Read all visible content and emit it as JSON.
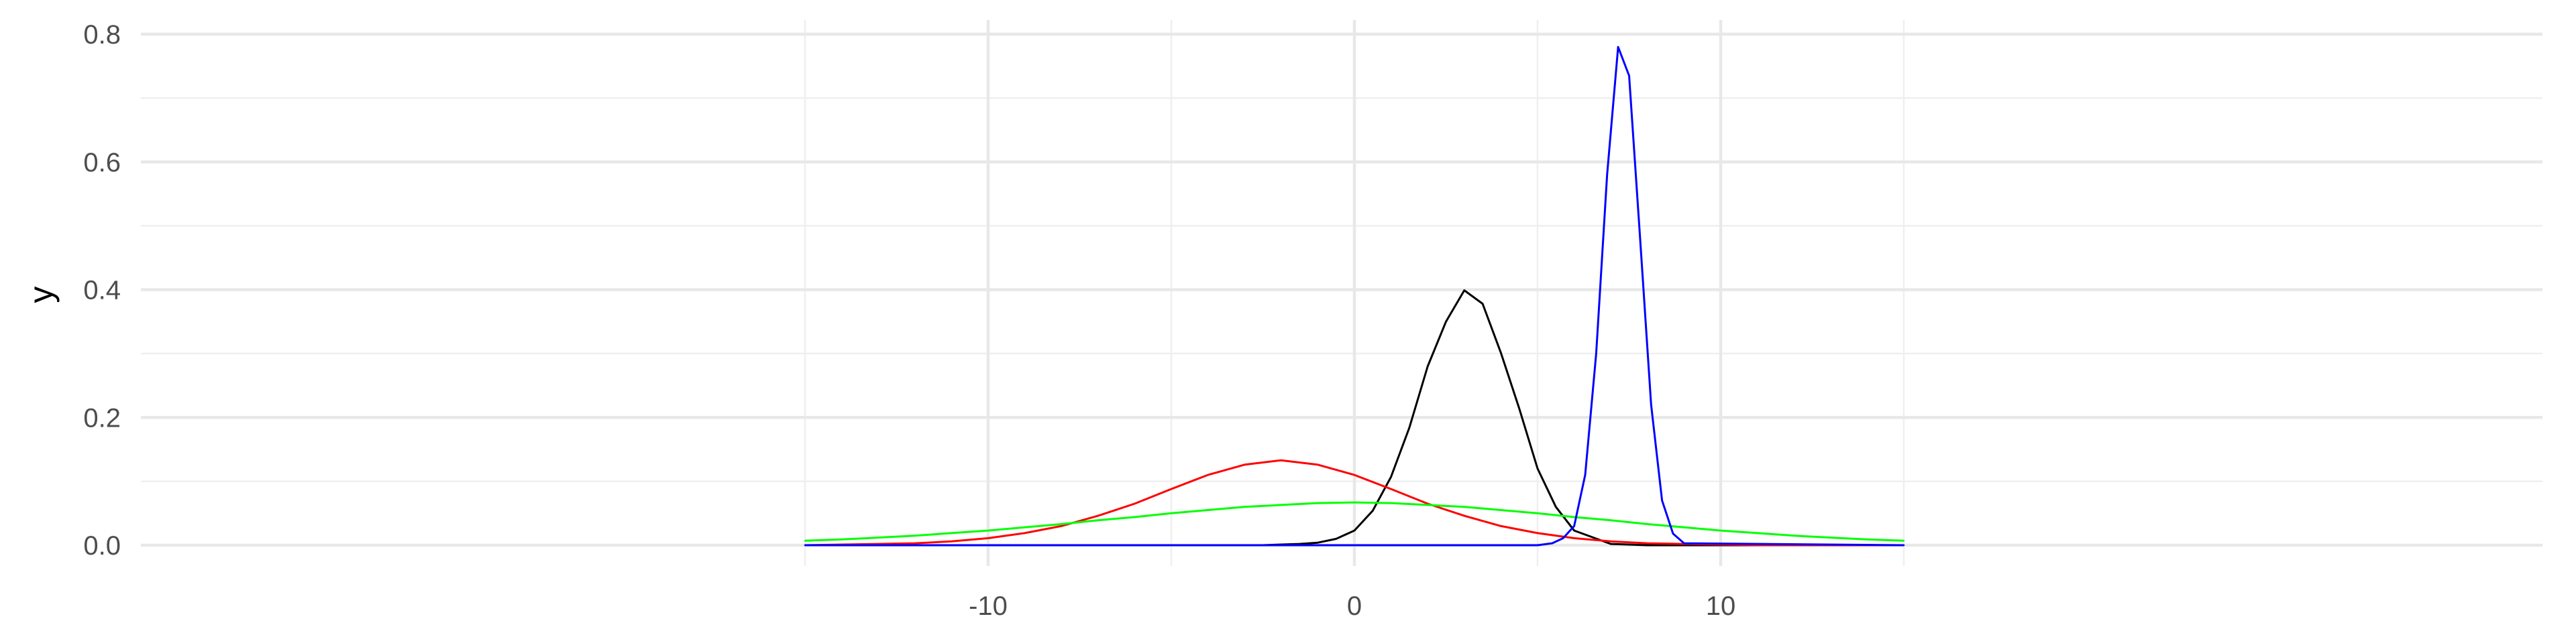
{
  "chart_data": {
    "type": "line",
    "title": "",
    "xlabel": "",
    "ylabel": "y",
    "xlim": [
      -15,
      15
    ],
    "ylim": [
      0,
      0.8
    ],
    "x_ticks": [
      -10,
      0,
      10
    ],
    "x_tick_labels": [
      "-10",
      "0",
      "10"
    ],
    "y_ticks": [
      0.0,
      0.2,
      0.4,
      0.6,
      0.8
    ],
    "y_tick_labels": [
      "0.0",
      "0.2",
      "0.4",
      "0.6",
      "0.8"
    ],
    "grid": true,
    "legend": "none",
    "series": [
      {
        "color": "#000000",
        "x": [
          -15,
          -14,
          -13,
          -12,
          -11,
          -10,
          -9,
          -8,
          -7,
          -6,
          -5,
          -4,
          -3,
          -2.5,
          -2,
          -1.5,
          -1,
          -0.5,
          0,
          0.5,
          1,
          1.5,
          2,
          2.5,
          3,
          3.5,
          4,
          4.5,
          5,
          5.5,
          6,
          7,
          8,
          9,
          10,
          11,
          12,
          13,
          14,
          15
        ],
        "y": [
          0,
          0,
          0,
          0,
          0,
          0,
          0,
          0,
          0,
          0,
          0,
          0,
          0,
          0,
          0.001,
          0.002,
          0.004,
          0.01,
          0.023,
          0.054,
          0.107,
          0.184,
          0.28,
          0.35,
          0.399,
          0.378,
          0.301,
          0.214,
          0.12,
          0.06,
          0.023,
          0.002,
          0,
          0,
          0,
          0,
          0,
          0,
          0,
          0
        ]
      },
      {
        "color": "#ff0000",
        "x": [
          -15,
          -14,
          -13,
          -12,
          -11,
          -10,
          -9,
          -8,
          -7,
          -6,
          -5,
          -4,
          -3,
          -2,
          -1,
          0,
          1,
          2,
          3,
          4,
          5,
          6,
          7,
          8,
          9,
          10,
          11,
          12,
          13,
          14,
          15
        ],
        "y": [
          0,
          0.001,
          0.002,
          0.003,
          0.006,
          0.011,
          0.019,
          0.03,
          0.046,
          0.065,
          0.088,
          0.11,
          0.126,
          0.133,
          0.126,
          0.11,
          0.088,
          0.065,
          0.046,
          0.03,
          0.019,
          0.011,
          0.006,
          0.003,
          0.002,
          0.001,
          0,
          0,
          0,
          0,
          0
        ]
      },
      {
        "color": "#00ff00",
        "x": [
          -15,
          -14,
          -13,
          -12,
          -11,
          -10,
          -9,
          -8,
          -7,
          -6,
          -5,
          -4,
          -3,
          -2,
          -1,
          0,
          1,
          2,
          3,
          4,
          5,
          6,
          7,
          8,
          9,
          10,
          11,
          12,
          13,
          14,
          15
        ],
        "y": [
          0.007,
          0.009,
          0.012,
          0.015,
          0.019,
          0.023,
          0.028,
          0.033,
          0.039,
          0.044,
          0.05,
          0.055,
          0.06,
          0.063,
          0.066,
          0.067,
          0.066,
          0.063,
          0.06,
          0.055,
          0.05,
          0.044,
          0.039,
          0.033,
          0.028,
          0.023,
          0.019,
          0.015,
          0.012,
          0.009,
          0.007
        ]
      },
      {
        "color": "#0000ff",
        "x": [
          -15,
          5,
          5.4,
          5.7,
          6,
          6.3,
          6.6,
          6.9,
          7.2,
          7.5,
          7.8,
          8.1,
          8.4,
          8.7,
          9,
          15
        ],
        "y": [
          0,
          0,
          0.003,
          0.011,
          0.03,
          0.11,
          0.3,
          0.58,
          0.78,
          0.735,
          0.48,
          0.22,
          0.07,
          0.018,
          0.003,
          0
        ]
      }
    ]
  }
}
